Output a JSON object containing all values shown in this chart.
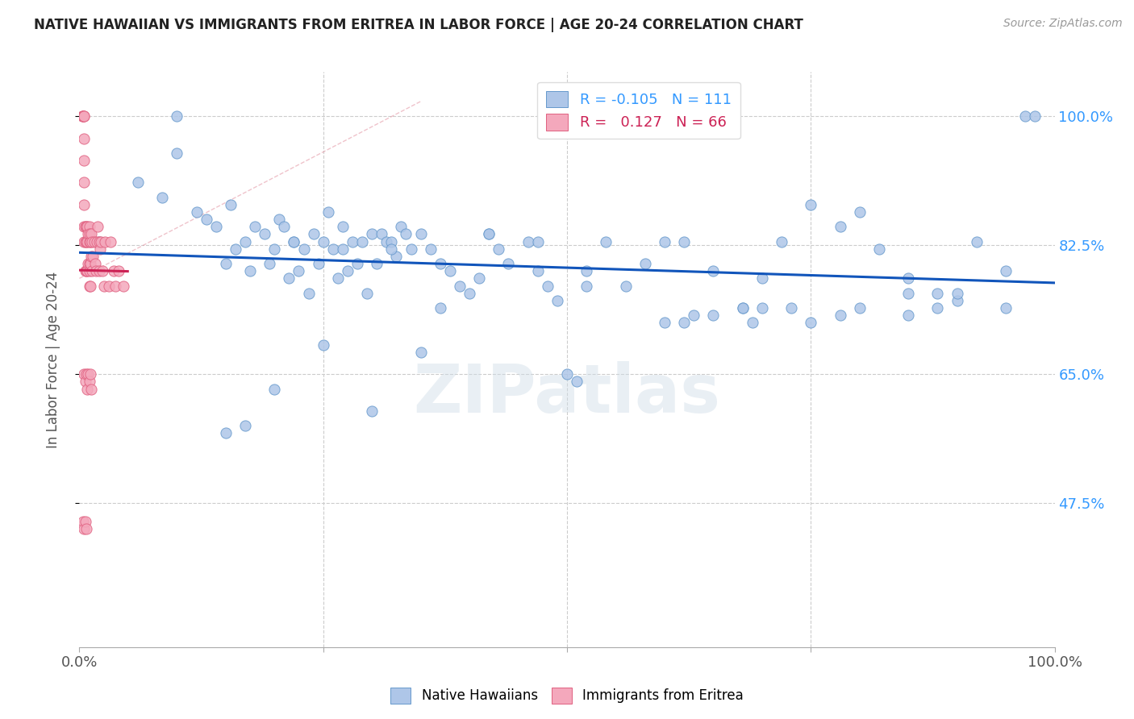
{
  "title": "NATIVE HAWAIIAN VS IMMIGRANTS FROM ERITREA IN LABOR FORCE | AGE 20-24 CORRELATION CHART",
  "source": "Source: ZipAtlas.com",
  "ylabel": "In Labor Force | Age 20-24",
  "xlim": [
    0.0,
    1.0
  ],
  "ylim": [
    0.28,
    1.06
  ],
  "yticks": [
    0.475,
    0.65,
    0.825,
    1.0
  ],
  "ytick_labels": [
    "47.5%",
    "65.0%",
    "82.5%",
    "100.0%"
  ],
  "xtick_labels_bottom": [
    "0.0%",
    "100.0%"
  ],
  "watermark": "ZIPatlas",
  "blue_color": "#aec6e8",
  "pink_color": "#f4a8bc",
  "blue_edge_color": "#6699cc",
  "pink_edge_color": "#e06080",
  "trend_blue_color": "#1155bb",
  "trend_pink_color": "#cc2255",
  "trend_pink_dashed_color": "#e08898",
  "grid_color": "#cccccc",
  "title_color": "#222222",
  "axis_label_color": "#555555",
  "tick_color": "#555555",
  "right_tick_color": "#3399ff",
  "background_color": "#ffffff",
  "scatter_size": 90,
  "blue_scatter_x": [
    0.02,
    0.06,
    0.085,
    0.1,
    0.1,
    0.12,
    0.13,
    0.14,
    0.15,
    0.155,
    0.16,
    0.17,
    0.175,
    0.18,
    0.19,
    0.195,
    0.2,
    0.205,
    0.21,
    0.215,
    0.22,
    0.225,
    0.23,
    0.235,
    0.24,
    0.245,
    0.25,
    0.255,
    0.26,
    0.265,
    0.27,
    0.275,
    0.28,
    0.285,
    0.29,
    0.295,
    0.3,
    0.305,
    0.31,
    0.315,
    0.32,
    0.325,
    0.33,
    0.335,
    0.34,
    0.35,
    0.36,
    0.37,
    0.38,
    0.39,
    0.4,
    0.41,
    0.42,
    0.43,
    0.44,
    0.46,
    0.47,
    0.48,
    0.49,
    0.5,
    0.51,
    0.52,
    0.54,
    0.56,
    0.58,
    0.6,
    0.62,
    0.65,
    0.68,
    0.7,
    0.72,
    0.75,
    0.78,
    0.8,
    0.82,
    0.85,
    0.88,
    0.9,
    0.92,
    0.95,
    0.15,
    0.2,
    0.25,
    0.3,
    0.35,
    0.22,
    0.27,
    0.32,
    0.37,
    0.42,
    0.47,
    0.52,
    0.6,
    0.65,
    0.7,
    0.75,
    0.8,
    0.85,
    0.9,
    0.95,
    0.97,
    0.98,
    0.62,
    0.63,
    0.68,
    0.69,
    0.73,
    0.78,
    0.85,
    0.88,
    0.17
  ],
  "blue_scatter_y": [
    0.83,
    0.91,
    0.89,
    1.0,
    0.95,
    0.87,
    0.86,
    0.85,
    0.8,
    0.88,
    0.82,
    0.83,
    0.79,
    0.85,
    0.84,
    0.8,
    0.82,
    0.86,
    0.85,
    0.78,
    0.83,
    0.79,
    0.82,
    0.76,
    0.84,
    0.8,
    0.83,
    0.87,
    0.82,
    0.78,
    0.85,
    0.79,
    0.83,
    0.8,
    0.83,
    0.76,
    0.84,
    0.8,
    0.84,
    0.83,
    0.83,
    0.81,
    0.85,
    0.84,
    0.82,
    0.84,
    0.82,
    0.8,
    0.79,
    0.77,
    0.76,
    0.78,
    0.84,
    0.82,
    0.8,
    0.83,
    0.79,
    0.77,
    0.75,
    0.65,
    0.64,
    0.77,
    0.83,
    0.77,
    0.8,
    0.83,
    0.83,
    0.79,
    0.74,
    0.78,
    0.83,
    0.88,
    0.85,
    0.87,
    0.82,
    0.78,
    0.76,
    0.75,
    0.83,
    0.79,
    0.57,
    0.63,
    0.69,
    0.6,
    0.68,
    0.83,
    0.82,
    0.82,
    0.74,
    0.84,
    0.83,
    0.79,
    0.72,
    0.73,
    0.74,
    0.72,
    0.74,
    0.73,
    0.76,
    0.74,
    1.0,
    1.0,
    0.72,
    0.73,
    0.74,
    0.72,
    0.74,
    0.73,
    0.76,
    0.74,
    0.58
  ],
  "pink_scatter_x": [
    0.003,
    0.004,
    0.004,
    0.005,
    0.005,
    0.005,
    0.005,
    0.005,
    0.005,
    0.005,
    0.005,
    0.006,
    0.006,
    0.006,
    0.007,
    0.007,
    0.007,
    0.008,
    0.008,
    0.008,
    0.009,
    0.009,
    0.01,
    0.01,
    0.01,
    0.01,
    0.01,
    0.01,
    0.011,
    0.011,
    0.011,
    0.012,
    0.012,
    0.013,
    0.013,
    0.014,
    0.015,
    0.016,
    0.017,
    0.018,
    0.019,
    0.02,
    0.02,
    0.021,
    0.022,
    0.024,
    0.025,
    0.026,
    0.03,
    0.032,
    0.035,
    0.037,
    0.04,
    0.045,
    0.005,
    0.006,
    0.007,
    0.008,
    0.009,
    0.01,
    0.011,
    0.012,
    0.004,
    0.005,
    0.006,
    0.007
  ],
  "pink_scatter_y": [
    1.0,
    1.0,
    1.0,
    1.0,
    1.0,
    0.97,
    0.94,
    0.91,
    0.88,
    0.85,
    0.83,
    0.85,
    0.83,
    0.79,
    0.85,
    0.83,
    0.79,
    0.85,
    0.83,
    0.79,
    0.84,
    0.8,
    0.85,
    0.83,
    0.79,
    0.77,
    0.84,
    0.8,
    0.83,
    0.8,
    0.77,
    0.84,
    0.81,
    0.83,
    0.79,
    0.81,
    0.83,
    0.8,
    0.79,
    0.83,
    0.85,
    0.83,
    0.79,
    0.82,
    0.83,
    0.79,
    0.77,
    0.83,
    0.77,
    0.83,
    0.79,
    0.77,
    0.79,
    0.77,
    0.65,
    0.64,
    0.65,
    0.63,
    0.65,
    0.64,
    0.65,
    0.63,
    0.45,
    0.44,
    0.45,
    0.44
  ]
}
